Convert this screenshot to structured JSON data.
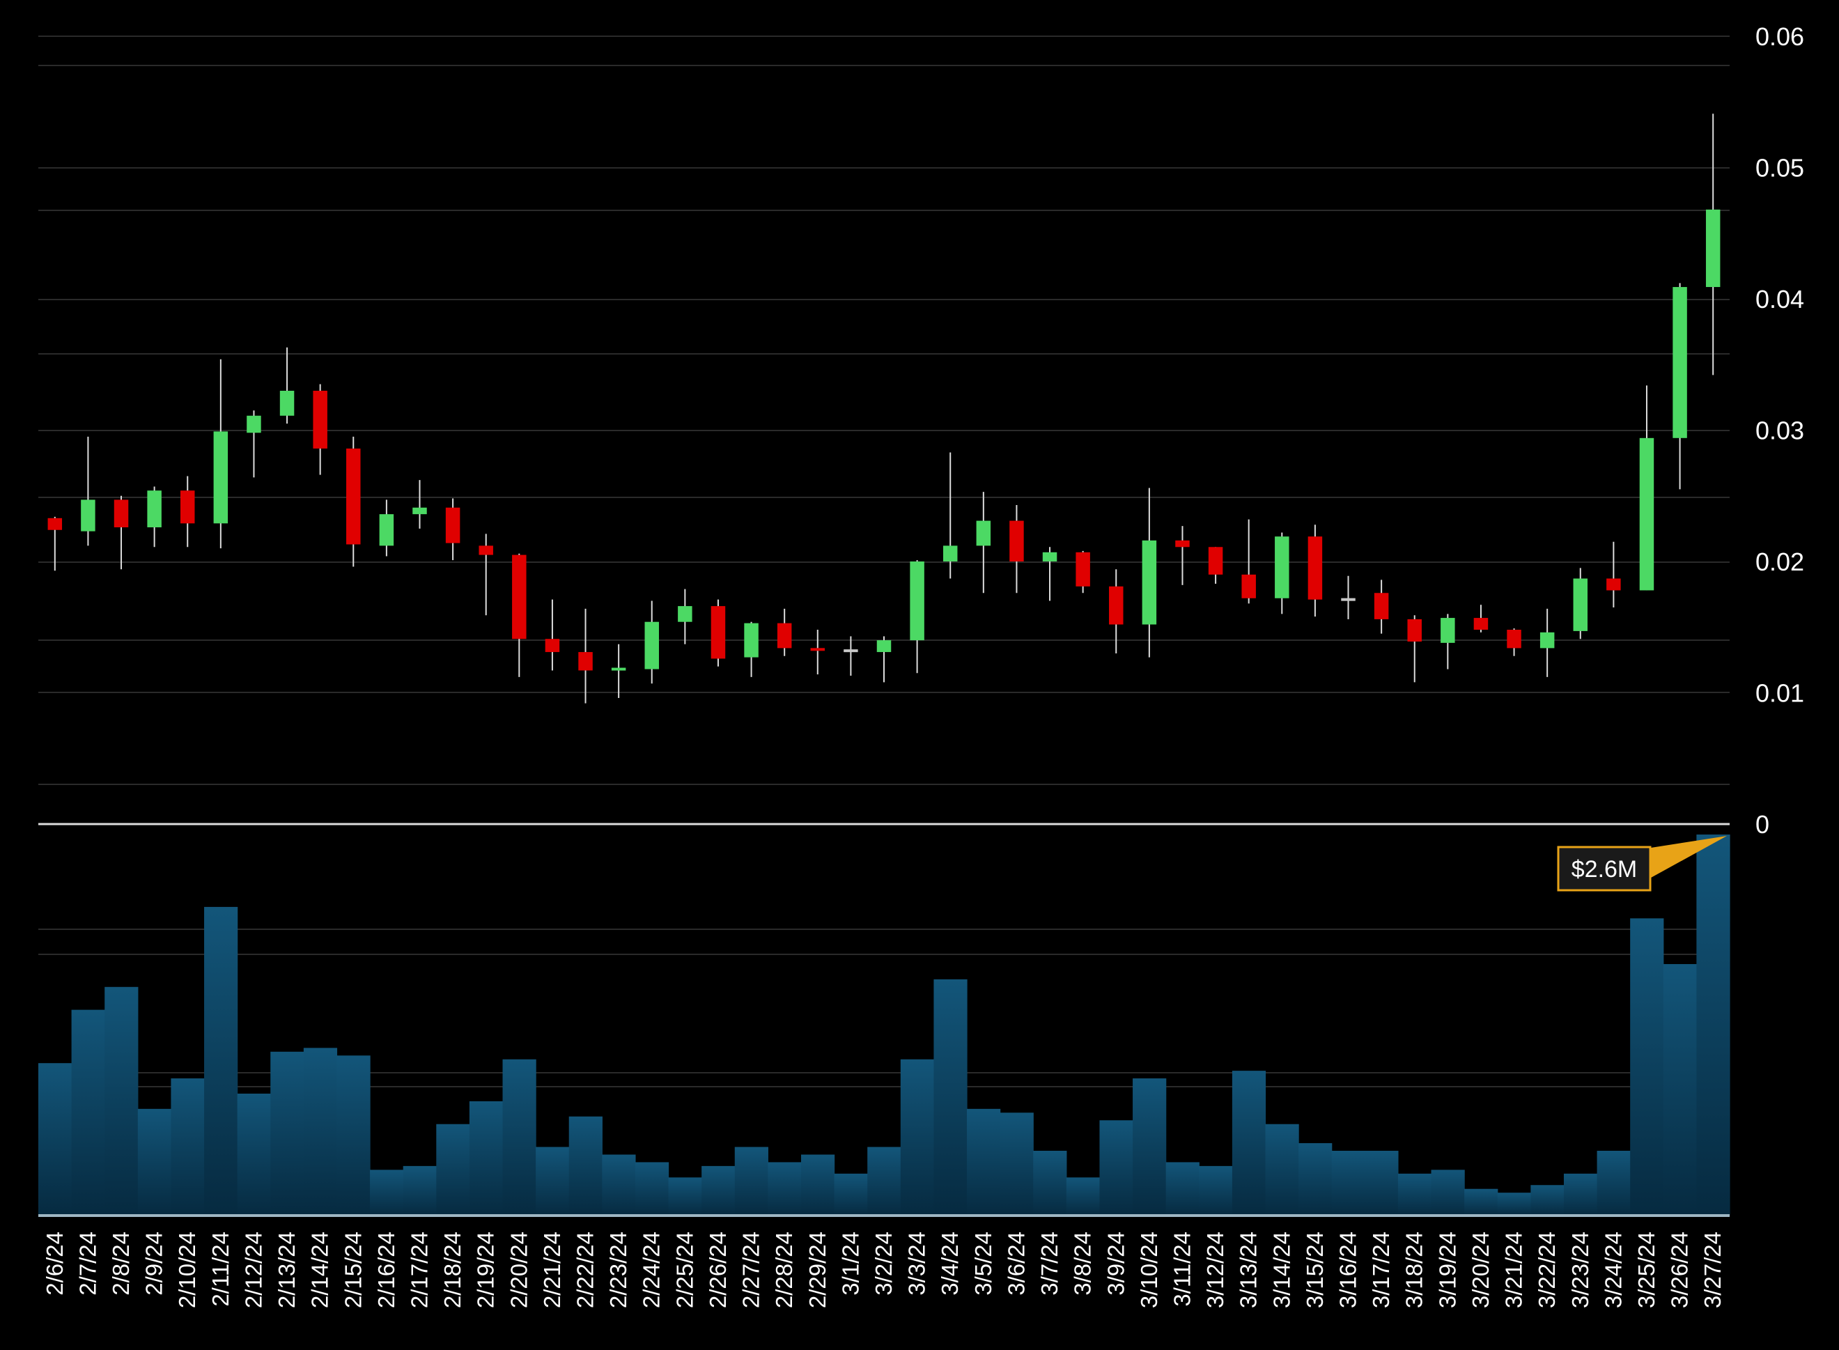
{
  "colors": {
    "background": "#000000",
    "up": "#4cd964",
    "down": "#e00000",
    "neutral": "#c8c8c8",
    "wick": "#dddddd",
    "grid": "#2a2a2a",
    "volume_top": "#13567a",
    "volume_bottom": "#062a40",
    "callout_border": "#e8a317",
    "callout_fill": "#1a1a1a"
  },
  "chart_data": {
    "type": "candlestick",
    "y_axis": {
      "ticks": [
        "0.06",
        "0.05",
        "0.04",
        "0.03",
        "0.02",
        "0.01",
        "0"
      ],
      "range": [
        0,
        0.06
      ],
      "position": "right"
    },
    "grid": true,
    "candles": [
      {
        "date": "2/6/24",
        "open": 0.0233,
        "high": 0.0234,
        "low": 0.0193,
        "close": 0.0224
      },
      {
        "date": "2/7/24",
        "open": 0.0223,
        "high": 0.0295,
        "low": 0.0212,
        "close": 0.0247
      },
      {
        "date": "2/8/24",
        "open": 0.0247,
        "high": 0.025,
        "low": 0.0194,
        "close": 0.0226
      },
      {
        "date": "2/9/24",
        "open": 0.0226,
        "high": 0.0257,
        "low": 0.0211,
        "close": 0.0254
      },
      {
        "date": "2/10/24",
        "open": 0.0254,
        "high": 0.0265,
        "low": 0.0211,
        "close": 0.0229
      },
      {
        "date": "2/11/24",
        "open": 0.0229,
        "high": 0.0354,
        "low": 0.021,
        "close": 0.0299
      },
      {
        "date": "2/12/24",
        "open": 0.0298,
        "high": 0.0315,
        "low": 0.0264,
        "close": 0.0311
      },
      {
        "date": "2/13/24",
        "open": 0.0311,
        "high": 0.0363,
        "low": 0.0305,
        "close": 0.033
      },
      {
        "date": "2/14/24",
        "open": 0.033,
        "high": 0.0335,
        "low": 0.0266,
        "close": 0.0286
      },
      {
        "date": "2/15/24",
        "open": 0.0286,
        "high": 0.0295,
        "low": 0.0196,
        "close": 0.0213
      },
      {
        "date": "2/16/24",
        "open": 0.0212,
        "high": 0.0247,
        "low": 0.0204,
        "close": 0.0236
      },
      {
        "date": "2/17/24",
        "open": 0.0236,
        "high": 0.0262,
        "low": 0.0225,
        "close": 0.0241
      },
      {
        "date": "2/18/24",
        "open": 0.0241,
        "high": 0.0248,
        "low": 0.0201,
        "close": 0.0214
      },
      {
        "date": "2/19/24",
        "open": 0.0212,
        "high": 0.0221,
        "low": 0.0159,
        "close": 0.0205
      },
      {
        "date": "2/20/24",
        "open": 0.0205,
        "high": 0.0206,
        "low": 0.0112,
        "close": 0.0141
      },
      {
        "date": "2/21/24",
        "open": 0.0141,
        "high": 0.0171,
        "low": 0.0117,
        "close": 0.0131
      },
      {
        "date": "2/22/24",
        "open": 0.0131,
        "high": 0.0164,
        "low": 0.0092,
        "close": 0.0117
      },
      {
        "date": "2/23/24",
        "open": 0.0116,
        "high": 0.0137,
        "low": 0.0096,
        "close": 0.0118
      },
      {
        "date": "2/24/24",
        "open": 0.0118,
        "high": 0.017,
        "low": 0.0107,
        "close": 0.0154
      },
      {
        "date": "2/25/24",
        "open": 0.0154,
        "high": 0.0179,
        "low": 0.0137,
        "close": 0.0166
      },
      {
        "date": "2/26/24",
        "open": 0.0166,
        "high": 0.0171,
        "low": 0.012,
        "close": 0.0126
      },
      {
        "date": "2/27/24",
        "open": 0.0127,
        "high": 0.0154,
        "low": 0.0112,
        "close": 0.0153
      },
      {
        "date": "2/28/24",
        "open": 0.0153,
        "high": 0.0164,
        "low": 0.0128,
        "close": 0.0134
      },
      {
        "date": "2/29/24",
        "open": 0.0133,
        "high": 0.0148,
        "low": 0.0114,
        "close": 0.0132
      },
      {
        "date": "3/1/24",
        "open": 0.0132,
        "high": 0.0143,
        "low": 0.0113,
        "close": 0.0132
      },
      {
        "date": "3/2/24",
        "open": 0.0131,
        "high": 0.0143,
        "low": 0.0108,
        "close": 0.014
      },
      {
        "date": "3/3/24",
        "open": 0.014,
        "high": 0.0201,
        "low": 0.0115,
        "close": 0.02
      },
      {
        "date": "3/4/24",
        "open": 0.02,
        "high": 0.0283,
        "low": 0.0187,
        "close": 0.0212
      },
      {
        "date": "3/5/24",
        "open": 0.0212,
        "high": 0.0253,
        "low": 0.0176,
        "close": 0.0231
      },
      {
        "date": "3/6/24",
        "open": 0.0231,
        "high": 0.0243,
        "low": 0.0176,
        "close": 0.02
      },
      {
        "date": "3/7/24",
        "open": 0.02,
        "high": 0.0211,
        "low": 0.017,
        "close": 0.0207
      },
      {
        "date": "3/8/24",
        "open": 0.0207,
        "high": 0.0208,
        "low": 0.0176,
        "close": 0.0181
      },
      {
        "date": "3/9/24",
        "open": 0.0181,
        "high": 0.0194,
        "low": 0.013,
        "close": 0.0152
      },
      {
        "date": "3/10/24",
        "open": 0.0152,
        "high": 0.0256,
        "low": 0.0127,
        "close": 0.0216
      },
      {
        "date": "3/11/24",
        "open": 0.0216,
        "high": 0.0227,
        "low": 0.0182,
        "close": 0.0211
      },
      {
        "date": "3/12/24",
        "open": 0.0211,
        "high": 0.0211,
        "low": 0.0183,
        "close": 0.019
      },
      {
        "date": "3/13/24",
        "open": 0.019,
        "high": 0.0232,
        "low": 0.0168,
        "close": 0.0172
      },
      {
        "date": "3/14/24",
        "open": 0.0172,
        "high": 0.0222,
        "low": 0.016,
        "close": 0.0219
      },
      {
        "date": "3/15/24",
        "open": 0.0219,
        "high": 0.0228,
        "low": 0.0158,
        "close": 0.0171
      },
      {
        "date": "3/16/24",
        "open": 0.0171,
        "high": 0.0189,
        "low": 0.0156,
        "close": 0.0171
      },
      {
        "date": "3/17/24",
        "open": 0.0176,
        "high": 0.0186,
        "low": 0.0145,
        "close": 0.0156
      },
      {
        "date": "3/18/24",
        "open": 0.0156,
        "high": 0.0159,
        "low": 0.0108,
        "close": 0.0139
      },
      {
        "date": "3/19/24",
        "open": 0.0138,
        "high": 0.016,
        "low": 0.0118,
        "close": 0.0157
      },
      {
        "date": "3/20/24",
        "open": 0.0157,
        "high": 0.0167,
        "low": 0.0146,
        "close": 0.0148
      },
      {
        "date": "3/21/24",
        "open": 0.0148,
        "high": 0.0149,
        "low": 0.0128,
        "close": 0.0134
      },
      {
        "date": "3/22/24",
        "open": 0.0134,
        "high": 0.0164,
        "low": 0.0112,
        "close": 0.0146
      },
      {
        "date": "3/23/24",
        "open": 0.0147,
        "high": 0.0195,
        "low": 0.0141,
        "close": 0.0187
      },
      {
        "date": "3/24/24",
        "open": 0.0187,
        "high": 0.0215,
        "low": 0.0165,
        "close": 0.0178
      },
      {
        "date": "3/25/24",
        "open": 0.0178,
        "high": 0.0334,
        "low": 0.0178,
        "close": 0.0294
      },
      {
        "date": "3/26/24",
        "open": 0.0294,
        "high": 0.0412,
        "low": 0.0255,
        "close": 0.0409
      },
      {
        "date": "3/27/24",
        "open": 0.0409,
        "high": 0.0541,
        "low": 0.0342,
        "close": 0.0468
      }
    ],
    "volume_relative": [
      0.4,
      0.54,
      0.6,
      0.28,
      0.36,
      0.81,
      0.32,
      0.43,
      0.44,
      0.42,
      0.12,
      0.13,
      0.24,
      0.3,
      0.41,
      0.18,
      0.26,
      0.16,
      0.14,
      0.1,
      0.13,
      0.18,
      0.14,
      0.16,
      0.11,
      0.18,
      0.41,
      0.62,
      0.28,
      0.27,
      0.17,
      0.1,
      0.25,
      0.36,
      0.14,
      0.13,
      0.38,
      0.24,
      0.19,
      0.17,
      0.17,
      0.11,
      0.12,
      0.07,
      0.06,
      0.08,
      0.11,
      0.17,
      0.78,
      0.66,
      1.0
    ],
    "annotation": {
      "label": "$2.6M",
      "target_date": "3/27/24"
    }
  }
}
